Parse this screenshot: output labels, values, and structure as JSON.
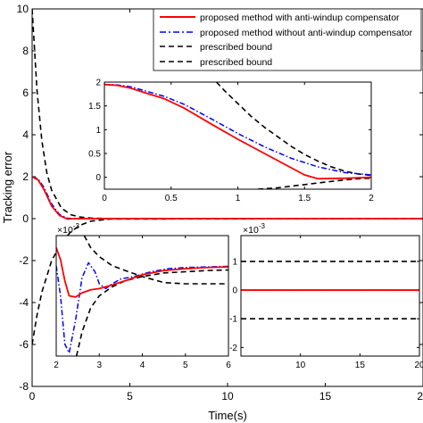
{
  "colors": {
    "with_aw": "#ff0000",
    "without_aw": "#0000ff",
    "bound": "#000000",
    "axes": "#000000",
    "background": "#ffffff"
  },
  "chart_data": [
    {
      "id": "main",
      "type": "line",
      "xlabel": "Time(s)",
      "ylabel": "Tracking error",
      "xlim": [
        0,
        20
      ],
      "ylim": [
        -8,
        10
      ],
      "xticks": [
        0,
        5,
        10,
        15,
        20
      ],
      "yticks": [
        -8,
        -6,
        -4,
        -2,
        0,
        2,
        4,
        6,
        8,
        10
      ],
      "legend": {
        "placement": "top-right",
        "entries": [
          {
            "label": "proposed method with anti-windup compensator",
            "style": "solid",
            "color": "#ff0000"
          },
          {
            "label": "proposed method without anti-windup compensator",
            "style": "dashdot",
            "color": "#0000ff"
          },
          {
            "label": "prescribed bound",
            "style": "dashed",
            "color": "#000000"
          },
          {
            "label": "prescribed bound",
            "style": "dashed",
            "color": "#000000"
          }
        ]
      },
      "series": [
        {
          "key": "with_aw",
          "x": [
            0,
            0.3,
            0.6,
            1.0,
            1.4,
            1.8,
            2.2,
            2.6,
            3.0,
            20
          ],
          "y": [
            2.0,
            1.85,
            1.4,
            0.6,
            0.15,
            -0.02,
            0.0,
            0.0,
            0.0,
            0.0
          ]
        },
        {
          "key": "without_aw",
          "x": [
            0,
            0.3,
            0.6,
            1.0,
            1.4,
            1.8,
            2.2,
            2.6,
            3.0,
            20
          ],
          "y": [
            2.0,
            1.9,
            1.5,
            0.7,
            0.2,
            0.02,
            -0.01,
            0.0,
            0.0,
            0.0
          ]
        },
        {
          "key": "upper_bound",
          "x": [
            0,
            0.25,
            0.5,
            0.75,
            1.0,
            1.5,
            2.0,
            2.5,
            3.0,
            4.0,
            20
          ],
          "y": [
            10.0,
            6.1,
            3.7,
            2.2,
            1.35,
            0.5,
            0.18,
            0.07,
            0.03,
            0.002,
            0.001
          ]
        },
        {
          "key": "lower_bound",
          "x": [
            0,
            0.25,
            0.5,
            1.0,
            1.5,
            2.0,
            2.5,
            3.0,
            4.0,
            20
          ],
          "y": [
            -6.0,
            -4.6,
            -3.5,
            -2.0,
            -1.15,
            -0.6,
            -0.3,
            -0.12,
            -0.02,
            -0.001
          ]
        }
      ]
    },
    {
      "id": "inset_top",
      "type": "line",
      "xlim": [
        0,
        2
      ],
      "ylim": [
        -0.25,
        2
      ],
      "xticks": [
        0,
        0.5,
        1,
        1.5,
        2
      ],
      "xtick_labels": [
        "0",
        "0.5",
        "1",
        "1.5",
        "2"
      ],
      "yticks": [
        0,
        0.5,
        1,
        1.5,
        2
      ],
      "ytick_labels": [
        "0",
        "0.5",
        "1",
        "1.5",
        "2"
      ],
      "series": [
        {
          "key": "with_aw",
          "x": [
            0,
            0.1,
            0.2,
            0.3,
            0.45,
            0.6,
            0.8,
            1.0,
            1.2,
            1.4,
            1.5,
            1.6,
            1.8,
            2.0
          ],
          "y": [
            1.95,
            1.93,
            1.87,
            1.78,
            1.65,
            1.45,
            1.12,
            0.8,
            0.5,
            0.2,
            0.05,
            -0.03,
            -0.02,
            0.0
          ]
        },
        {
          "key": "without_aw",
          "x": [
            0,
            0.1,
            0.2,
            0.3,
            0.45,
            0.6,
            0.8,
            1.0,
            1.2,
            1.4,
            1.6,
            1.8,
            2.0
          ],
          "y": [
            1.95,
            1.94,
            1.9,
            1.82,
            1.7,
            1.53,
            1.23,
            0.92,
            0.64,
            0.4,
            0.22,
            0.1,
            0.05
          ]
        },
        {
          "key": "upper_bound",
          "x": [
            0.84,
            0.9,
            1.0,
            1.1,
            1.2,
            1.3,
            1.4,
            1.5,
            1.6,
            1.7,
            1.8,
            1.9,
            2.0
          ],
          "y": [
            2.0,
            1.82,
            1.55,
            1.28,
            1.05,
            0.85,
            0.65,
            0.48,
            0.34,
            0.22,
            0.13,
            0.07,
            0.04
          ]
        },
        {
          "key": "lower_bound",
          "x": [
            1.15,
            1.3,
            1.45,
            1.6,
            1.75,
            1.9,
            2.0
          ],
          "y": [
            -0.25,
            -0.22,
            -0.17,
            -0.12,
            -0.07,
            -0.03,
            -0.02
          ]
        }
      ]
    },
    {
      "id": "inset_bottom_left",
      "type": "line",
      "exponent_label": "×10",
      "exponent_power": "-3",
      "xlim": [
        2,
        6
      ],
      "ylim": [
        -15,
        5
      ],
      "xticks": [
        2,
        3,
        4,
        5,
        6
      ],
      "xtick_labels": [
        "2",
        "3",
        "4",
        "5",
        "6"
      ],
      "yticks": [],
      "series": [
        {
          "key": "with_aw",
          "x": [
            2.0,
            2.1,
            2.2,
            2.3,
            2.45,
            2.6,
            2.8,
            3.0,
            3.3,
            3.6,
            4.0,
            4.5,
            5.0,
            5.5,
            6.0
          ],
          "y": [
            3.0,
            1.0,
            -2.5,
            -5.0,
            -5.2,
            -4.5,
            -4.0,
            -3.8,
            -3.2,
            -2.5,
            -1.5,
            -0.8,
            -0.5,
            -0.3,
            -0.2
          ]
        },
        {
          "key": "without_aw",
          "x": [
            2.0,
            2.1,
            2.2,
            2.3,
            2.45,
            2.6,
            2.75,
            2.9,
            3.0,
            3.15,
            3.3,
            3.5,
            3.8,
            4.2,
            4.6,
            5.0,
            5.5,
            6.0
          ],
          "y": [
            0.0,
            -5.0,
            -13.0,
            -14.5,
            -9.0,
            -2.0,
            0.5,
            -1.0,
            -3.0,
            -3.8,
            -3.0,
            -2.2,
            -1.8,
            -1.0,
            -0.5,
            -0.3,
            -0.2,
            -0.1
          ]
        },
        {
          "key": "upper_bound",
          "x": [
            2.65,
            2.8,
            3.0,
            3.3,
            3.6,
            4.0,
            4.5,
            5.0,
            5.5,
            6.0
          ],
          "y": [
            5.0,
            3.0,
            1.5,
            0.0,
            -0.8,
            -1.8,
            -2.8,
            -3.0,
            -3.0,
            -3.0
          ]
        },
        {
          "key": "lower_bound",
          "x": [
            2.47,
            2.6,
            2.8,
            3.0,
            3.3,
            3.6,
            4.0,
            4.5,
            5.0,
            5.5,
            6.0
          ],
          "y": [
            -15.0,
            -11.0,
            -7.0,
            -5.0,
            -3.5,
            -2.5,
            -1.8,
            -1.2,
            -1.0,
            -0.8,
            -0.7
          ]
        }
      ]
    },
    {
      "id": "inset_bottom_right",
      "type": "line",
      "exponent_label": "×10",
      "exponent_power": "-3",
      "xlim": [
        5,
        20
      ],
      "ylim": [
        -2.3,
        1.9
      ],
      "xticks": [
        10,
        15,
        20
      ],
      "xtick_labels": [
        "10",
        "15",
        "20"
      ],
      "yticks": [
        -2,
        -1,
        0,
        1
      ],
      "ytick_labels": [
        "-2",
        "-1",
        "0",
        "1"
      ],
      "series": [
        {
          "key": "with_aw",
          "x": [
            5,
            20
          ],
          "y": [
            0,
            0
          ]
        },
        {
          "key": "without_aw",
          "x": [
            5,
            20
          ],
          "y": [
            0,
            0
          ]
        },
        {
          "key": "upper_bound",
          "x": [
            5,
            20
          ],
          "y": [
            1,
            1
          ]
        },
        {
          "key": "lower_bound",
          "x": [
            5,
            20
          ],
          "y": [
            -1,
            -1
          ]
        }
      ]
    }
  ]
}
